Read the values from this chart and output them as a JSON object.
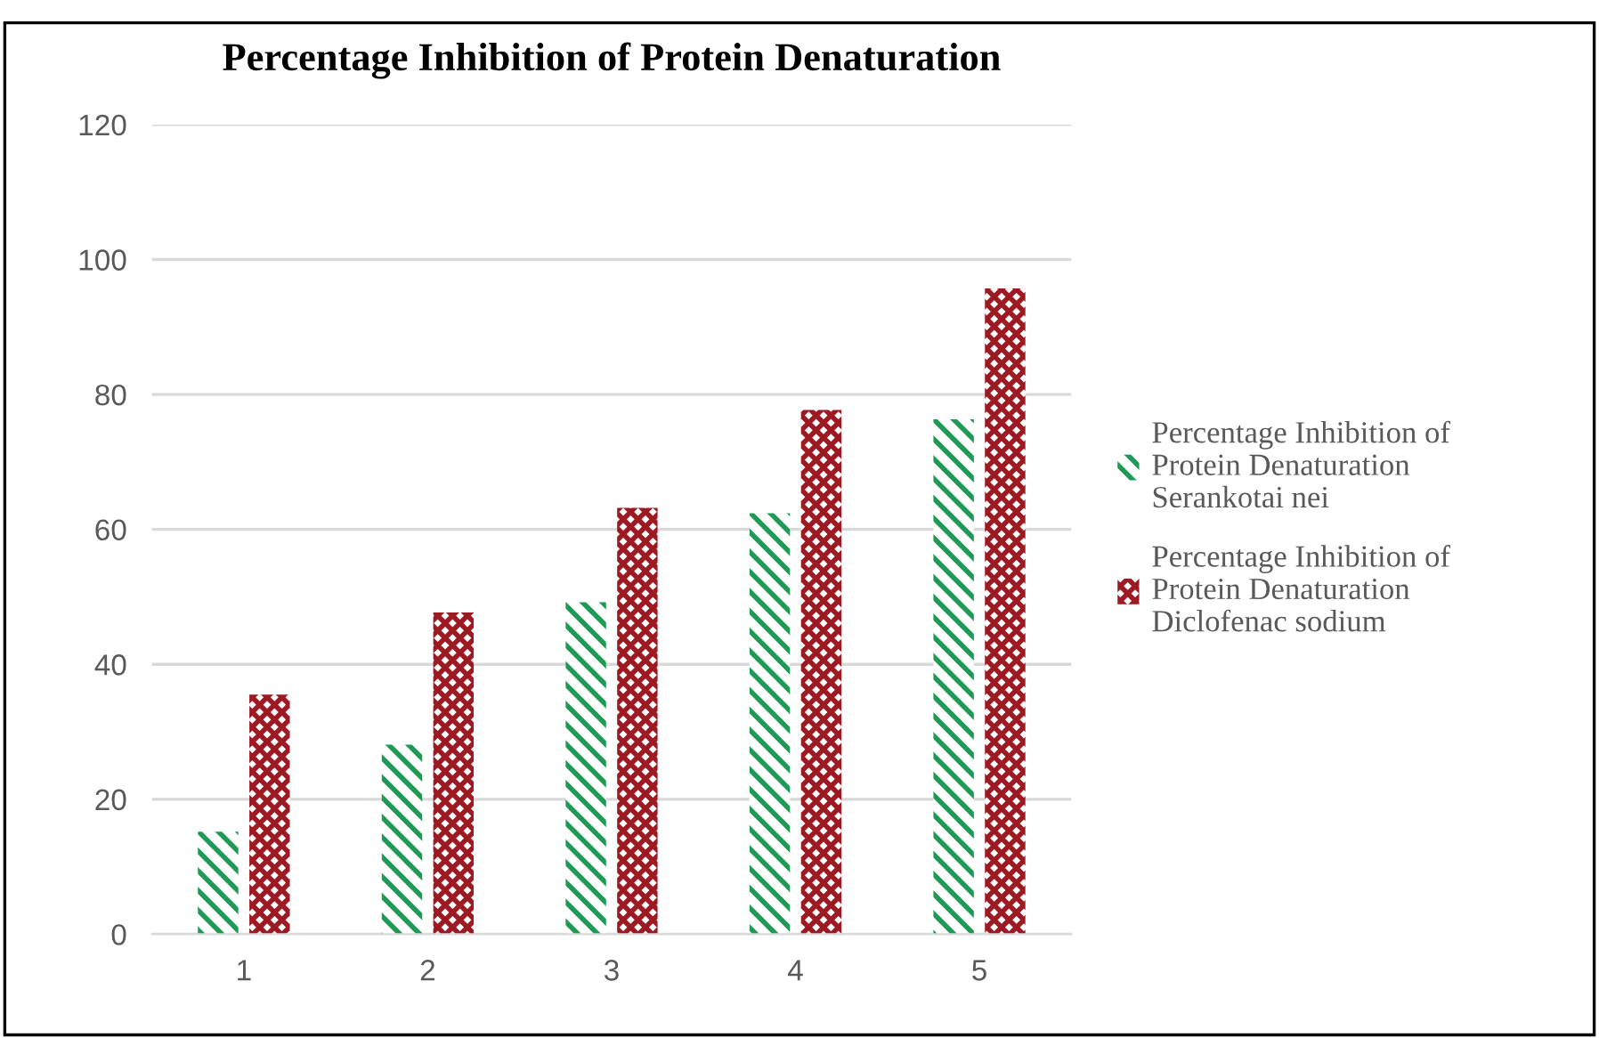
{
  "chart_data": {
    "type": "bar",
    "title": "Percentage Inhibition of Protein Denaturation",
    "categories": [
      "1",
      "2",
      "3",
      "4",
      "5"
    ],
    "series": [
      {
        "name": "Percentage Inhibition of\nProtein Denaturation\nSerankotai nei",
        "color": "#1e9a55",
        "values": [
          15.2,
          28.1,
          49.2,
          62.4,
          76.3
        ]
      },
      {
        "name": "Percentage Inhibition of\nProtein Denaturation\nDiclofenac sodium",
        "color": "#9e1a22",
        "values": [
          35.5,
          47.7,
          63.2,
          77.7,
          95.7
        ]
      }
    ],
    "ylim": [
      0,
      120
    ],
    "yticks": [
      0,
      20,
      40,
      60,
      80,
      100,
      120
    ],
    "grid": "y",
    "legend": "right"
  }
}
